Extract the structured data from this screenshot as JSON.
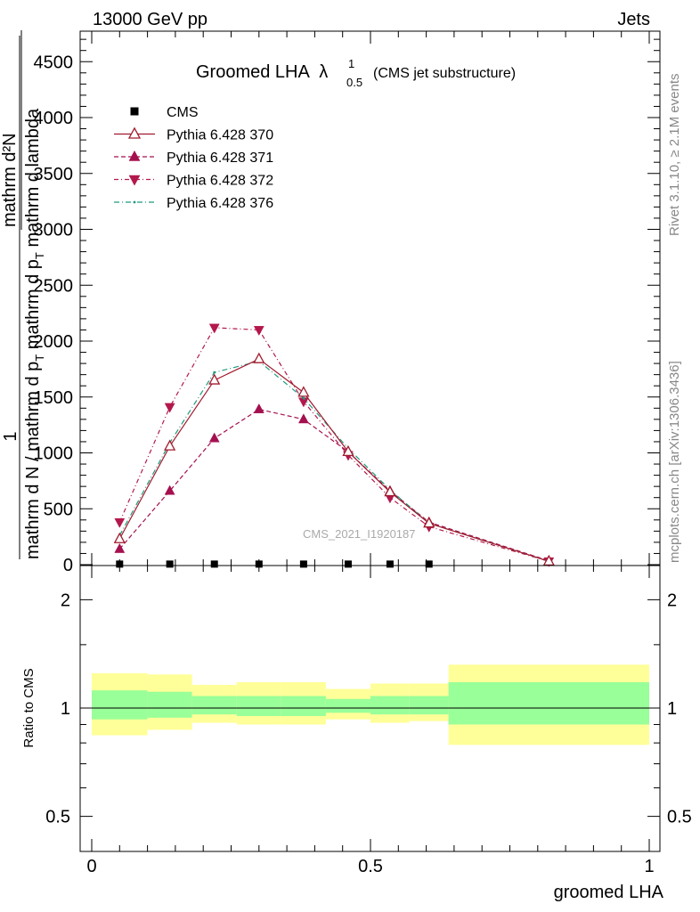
{
  "header": {
    "left": "13000 GeV pp",
    "right": "Jets"
  },
  "side_labels": {
    "rivet": "Rivet 3.1.10, ≥ 2.1M events",
    "mcplots": "mcplots.cern.ch [arXiv:1306.3436]"
  },
  "watermark": "CMS_2021_I1920187",
  "main_title": {
    "text": "Groomed LHA",
    "symbol": "λ",
    "sup": "1",
    "sub": "0.5",
    "note": "(CMS jet substructure)"
  },
  "ylabel": {
    "one": "1",
    "numerator": "mathrm d²N",
    "denominator": "mathrm d N / mathrm d p",
    "denominator_sub": "T",
    "denominator_tail": " mathrm d p",
    "denominator_sub2": "T",
    "denominator_tail2": " mathrm d lambda"
  },
  "ratio_ylabel": "Ratio to CMS",
  "xlabel": "groomed LHA",
  "colors": {
    "cms": "#000000",
    "p370": "#a01b2d",
    "p371": "#a5104f",
    "p372": "#b3184c",
    "p376": "#1f9a7d",
    "band_inner": "#99ff99",
    "band_outer": "#ffff99"
  },
  "chart_data": [
    {
      "type": "line",
      "title": "Groomed LHA λ¹₀.₅ (CMS jet substructure)",
      "xlabel": "groomed LHA",
      "xlim": [
        0,
        1
      ],
      "ylim": [
        0,
        4750
      ],
      "yticks": [
        0,
        500,
        1000,
        1500,
        2000,
        2500,
        3000,
        3500,
        4000,
        4500
      ],
      "ytick_labels": [
        "0",
        "500",
        "1000",
        "1500",
        "2000",
        "2500",
        "3000",
        "3500",
        "4000",
        "4500"
      ],
      "legend_position": "top-left",
      "series": [
        {
          "name": "CMS",
          "marker": "square",
          "x": [
            0.05,
            0.14,
            0.22,
            0.3,
            0.38,
            0.46,
            0.535,
            0.605
          ],
          "y": [
            5,
            5,
            5,
            5,
            5,
            5,
            5,
            5
          ]
        },
        {
          "name": "Pythia 6.428 370",
          "marker": "triangle-up-open",
          "x": [
            0.05,
            0.14,
            0.22,
            0.3,
            0.38,
            0.46,
            0.535,
            0.605,
            0.82
          ],
          "y": [
            230,
            1060,
            1650,
            1840,
            1540,
            1010,
            650,
            370,
            30
          ]
        },
        {
          "name": "Pythia 6.428 371",
          "marker": "triangle-up",
          "x": [
            0.05,
            0.14,
            0.22,
            0.3,
            0.38,
            0.46,
            0.535,
            0.605,
            0.82
          ],
          "y": [
            140,
            660,
            1130,
            1390,
            1300,
            1010,
            660,
            380,
            35
          ]
        },
        {
          "name": "Pythia 6.428 372",
          "marker": "triangle-down",
          "x": [
            0.05,
            0.14,
            0.22,
            0.3,
            0.38,
            0.46,
            0.535,
            0.605,
            0.82
          ],
          "y": [
            380,
            1410,
            2120,
            2100,
            1460,
            980,
            600,
            340,
            30
          ]
        },
        {
          "name": "Pythia 6.428 376",
          "marker": "dot",
          "x": [
            0.05,
            0.14,
            0.22,
            0.3,
            0.38,
            0.46,
            0.535,
            0.605,
            0.82
          ],
          "y": [
            260,
            1090,
            1720,
            1820,
            1490,
            1040,
            670,
            370,
            30
          ]
        }
      ]
    },
    {
      "type": "area",
      "ylabel": "Ratio to CMS",
      "xlabel": "groomed LHA",
      "xlim": [
        0,
        1
      ],
      "yscale": "log",
      "ylim": [
        0.4,
        2.4
      ],
      "yticks": [
        0.5,
        1,
        2
      ],
      "ytick_labels": [
        "0.5",
        "1",
        "2"
      ],
      "xticks": [
        0,
        0.5,
        1
      ],
      "xtick_labels": [
        "0",
        "0.5",
        "1"
      ],
      "reference_line": 1,
      "bins": [
        {
          "lo": 0.0,
          "hi": 0.1,
          "inner": [
            0.93,
            1.12
          ],
          "outer": [
            0.84,
            1.25
          ]
        },
        {
          "lo": 0.1,
          "hi": 0.18,
          "inner": [
            0.94,
            1.11
          ],
          "outer": [
            0.87,
            1.24
          ]
        },
        {
          "lo": 0.18,
          "hi": 0.26,
          "inner": [
            0.96,
            1.08
          ],
          "outer": [
            0.91,
            1.16
          ]
        },
        {
          "lo": 0.26,
          "hi": 0.34,
          "inner": [
            0.95,
            1.08
          ],
          "outer": [
            0.9,
            1.18
          ]
        },
        {
          "lo": 0.34,
          "hi": 0.42,
          "inner": [
            0.95,
            1.08
          ],
          "outer": [
            0.9,
            1.18
          ]
        },
        {
          "lo": 0.42,
          "hi": 0.5,
          "inner": [
            0.97,
            1.06
          ],
          "outer": [
            0.93,
            1.13
          ]
        },
        {
          "lo": 0.5,
          "hi": 0.57,
          "inner": [
            0.96,
            1.08
          ],
          "outer": [
            0.91,
            1.17
          ]
        },
        {
          "lo": 0.57,
          "hi": 0.64,
          "inner": [
            0.96,
            1.08
          ],
          "outer": [
            0.92,
            1.17
          ]
        },
        {
          "lo": 0.64,
          "hi": 1.0,
          "inner": [
            0.9,
            1.18
          ],
          "outer": [
            0.79,
            1.32
          ]
        }
      ]
    }
  ]
}
